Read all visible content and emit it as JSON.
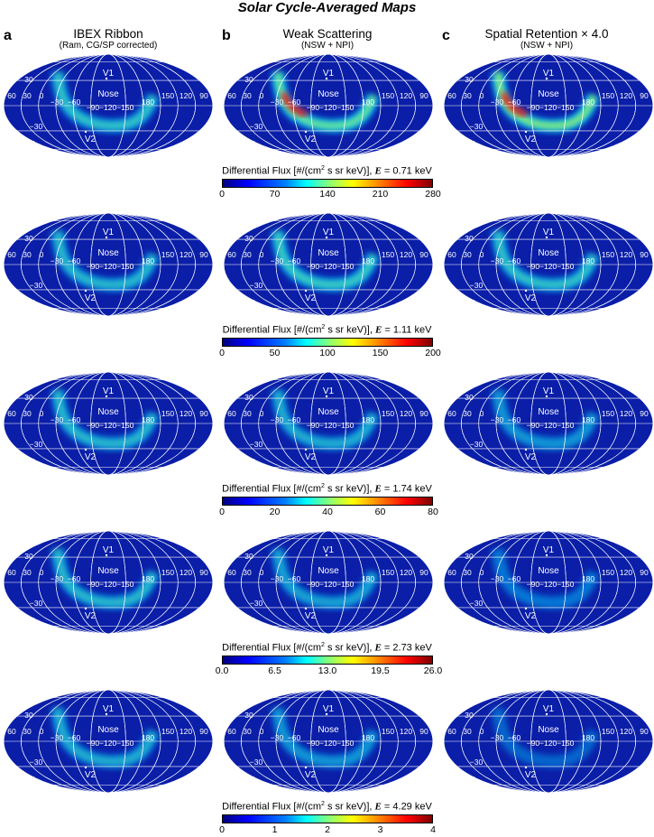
{
  "figure_title": "Solar Cycle-Averaged Maps",
  "columns": [
    {
      "letter": "a",
      "title": "IBEX Ribbon",
      "subtitle": "(Ram, CG/SP corrected)"
    },
    {
      "letter": "b",
      "title": "Weak Scattering",
      "subtitle": "(NSW + NPI)"
    },
    {
      "letter": "c",
      "title": "Spatial Retention × 4.0",
      "subtitle": "(NSW + NPI)"
    }
  ],
  "map_labels": {
    "v1": "V1",
    "v2": "V2",
    "nose": "Nose",
    "lat_ticks": [
      "60",
      "30",
      "0",
      "−30",
      "−60"
    ],
    "lon_ticks_left": [
      "60",
      "30",
      "0",
      "−30",
      "−60"
    ],
    "lon_ticks_mid": "−90−120−150",
    "lon_ticks_right": [
      "180",
      "150",
      "120",
      "90"
    ]
  },
  "colorbars": [
    {
      "label_prefix": "Differential Flux [#/(cm",
      "label_suffix": " s sr keV)], ",
      "energy_symbol": "E",
      "energy": " = 0.71 keV",
      "ticks": [
        "0",
        "70",
        "140",
        "210",
        "280"
      ]
    },
    {
      "label_prefix": "Differential Flux [#/(cm",
      "label_suffix": " s sr keV)], ",
      "energy_symbol": "E",
      "energy": " = 1.11 keV",
      "ticks": [
        "0",
        "50",
        "100",
        "150",
        "200"
      ]
    },
    {
      "label_prefix": "Differential Flux [#/(cm",
      "label_suffix": " s sr keV)], ",
      "energy_symbol": "E",
      "energy": " = 1.74 keV",
      "ticks": [
        "0",
        "20",
        "40",
        "60",
        "80"
      ]
    },
    {
      "label_prefix": "Differential Flux [#/(cm",
      "label_suffix": " s sr keV)], ",
      "energy_symbol": "E",
      "energy": " = 2.73 keV",
      "ticks": [
        "0.0",
        "6.5",
        "13.0",
        "19.5",
        "26.0"
      ]
    },
    {
      "label_prefix": "Differential Flux [#/(cm",
      "label_suffix": " s sr keV)], ",
      "energy_symbol": "E",
      "energy": " = 4.29 keV",
      "ticks": [
        "0",
        "1",
        "2",
        "3",
        "4"
      ]
    }
  ],
  "ribbon_intensity": [
    [
      0.55,
      0.85,
      1.0
    ],
    [
      0.5,
      0.6,
      0.55
    ],
    [
      0.5,
      0.45,
      0.35
    ],
    [
      0.5,
      0.4,
      0.22
    ],
    [
      0.45,
      0.35,
      0.12
    ]
  ],
  "colors": {
    "map_background": "#0a1ea8",
    "grid": "#ffffff",
    "ribbon_core": "#ffff00",
    "ribbon_peak": "#ff0000"
  }
}
